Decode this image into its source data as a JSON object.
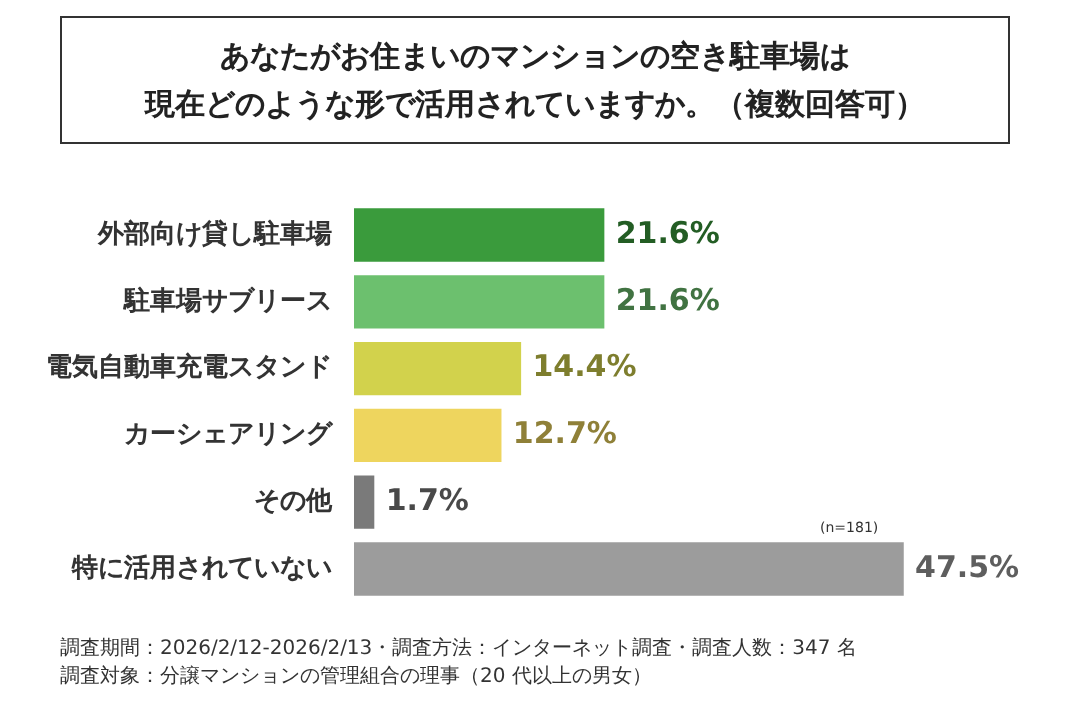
{
  "chart_data": {
    "type": "bar",
    "orientation": "horizontal",
    "title": "あなたがお住まいのマンションの空き駐車場は",
    "subtitle": "現在どのような形で活用されていますか。（複数回答可）",
    "categories": [
      "外部向け貸し駐車場",
      "駐車場サブリース",
      "電気自動車充電スタンド",
      "カーシェアリング",
      "その他",
      "特に活用されていない"
    ],
    "values": [
      21.6,
      21.6,
      14.4,
      12.7,
      1.7,
      47.5
    ],
    "value_labels": [
      "21.6%",
      "21.6%",
      "14.4%",
      "12.7%",
      "1.7%",
      "47.5%"
    ],
    "colors": [
      "#3a9b3c",
      "#6cc06e",
      "#d2d24c",
      "#eed55e",
      "#7a7a7a",
      "#9c9c9c"
    ],
    "legend": false,
    "annotations": [
      "(n=181)",
      "調査期間：2026/2/12-2026/2/13・調査方法：インターネット調査・調査人数：347 名",
      "調査対象：分譲マンションの管理組合の理事（20 代以上の男女）"
    ]
  }
}
